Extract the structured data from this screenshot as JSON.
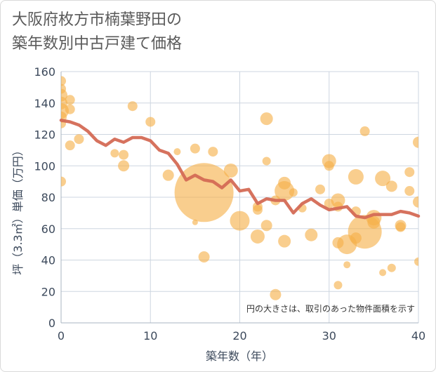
{
  "title_lines": [
    "大阪府枚方市楠葉野田の",
    "築年数別中古戸建て価格"
  ],
  "chart_data": {
    "type": "scatter",
    "title": "大阪府枚方市楠葉野田の築年数別中古戸建て価格",
    "xlabel": "築年数（年）",
    "ylabel": "坪（3.3㎡）単価（万円）",
    "xlim": [
      0,
      40
    ],
    "ylim": [
      0,
      160
    ],
    "xticks": [
      0,
      10,
      20,
      30,
      40
    ],
    "yticks": [
      0,
      20,
      40,
      60,
      80,
      100,
      120,
      140,
      160
    ],
    "grid": true,
    "note": "円の大きさは、取引のあった物件面積を示す",
    "colors": {
      "bubble": "#f5b048",
      "line": "#d46a55",
      "grid": "#cdd6e0"
    },
    "bubbles": [
      {
        "x": 0,
        "y": 154,
        "s": 7
      },
      {
        "x": 0,
        "y": 149,
        "s": 7
      },
      {
        "x": 0,
        "y": 145,
        "s": 9
      },
      {
        "x": 0,
        "y": 140,
        "s": 9
      },
      {
        "x": 0,
        "y": 135,
        "s": 11
      },
      {
        "x": 0,
        "y": 131,
        "s": 8
      },
      {
        "x": 0,
        "y": 127,
        "s": 7
      },
      {
        "x": 0,
        "y": 90,
        "s": 7
      },
      {
        "x": 1,
        "y": 142,
        "s": 7
      },
      {
        "x": 1,
        "y": 136,
        "s": 7
      },
      {
        "x": 1,
        "y": 113,
        "s": 7
      },
      {
        "x": 2,
        "y": 117,
        "s": 7
      },
      {
        "x": 6,
        "y": 108,
        "s": 6
      },
      {
        "x": 7,
        "y": 107,
        "s": 7
      },
      {
        "x": 7,
        "y": 100,
        "s": 8
      },
      {
        "x": 8,
        "y": 138,
        "s": 7
      },
      {
        "x": 10,
        "y": 128,
        "s": 7
      },
      {
        "x": 12,
        "y": 94,
        "s": 8
      },
      {
        "x": 13,
        "y": 109,
        "s": 5
      },
      {
        "x": 15,
        "y": 111,
        "s": 7
      },
      {
        "x": 15,
        "y": 64,
        "s": 4
      },
      {
        "x": 16,
        "y": 83,
        "s": 42
      },
      {
        "x": 16,
        "y": 42,
        "s": 8
      },
      {
        "x": 17,
        "y": 109,
        "s": 7
      },
      {
        "x": 19,
        "y": 97,
        "s": 10
      },
      {
        "x": 20,
        "y": 65,
        "s": 14
      },
      {
        "x": 22,
        "y": 55,
        "s": 10
      },
      {
        "x": 22,
        "y": 74,
        "s": 7
      },
      {
        "x": 22,
        "y": 72,
        "s": 7
      },
      {
        "x": 23,
        "y": 130,
        "s": 9
      },
      {
        "x": 23,
        "y": 103,
        "s": 6
      },
      {
        "x": 23,
        "y": 62,
        "s": 8
      },
      {
        "x": 24,
        "y": 18,
        "s": 8
      },
      {
        "x": 24,
        "y": 78,
        "s": 7
      },
      {
        "x": 25,
        "y": 84,
        "s": 14
      },
      {
        "x": 25,
        "y": 89,
        "s": 9
      },
      {
        "x": 25,
        "y": 52,
        "s": 9
      },
      {
        "x": 26,
        "y": 83,
        "s": 6
      },
      {
        "x": 27,
        "y": 73,
        "s": 6
      },
      {
        "x": 28,
        "y": 56,
        "s": 9
      },
      {
        "x": 29,
        "y": 85,
        "s": 7
      },
      {
        "x": 30,
        "y": 103,
        "s": 10
      },
      {
        "x": 30,
        "y": 100,
        "s": 7
      },
      {
        "x": 30,
        "y": 76,
        "s": 7
      },
      {
        "x": 31,
        "y": 78,
        "s": 10
      },
      {
        "x": 31,
        "y": 74,
        "s": 7
      },
      {
        "x": 31,
        "y": 51,
        "s": 8
      },
      {
        "x": 31,
        "y": 24,
        "s": 6
      },
      {
        "x": 32,
        "y": 50,
        "s": 14
      },
      {
        "x": 32,
        "y": 37,
        "s": 5
      },
      {
        "x": 33,
        "y": 93,
        "s": 11
      },
      {
        "x": 33,
        "y": 71,
        "s": 7
      },
      {
        "x": 33,
        "y": 54,
        "s": 8
      },
      {
        "x": 34,
        "y": 122,
        "s": 7
      },
      {
        "x": 34,
        "y": 58,
        "s": 24
      },
      {
        "x": 35,
        "y": 67,
        "s": 11
      },
      {
        "x": 35,
        "y": 64,
        "s": 9
      },
      {
        "x": 36,
        "y": 92,
        "s": 11
      },
      {
        "x": 36,
        "y": 32,
        "s": 5
      },
      {
        "x": 37,
        "y": 87,
        "s": 8
      },
      {
        "x": 37,
        "y": 35,
        "s": 6
      },
      {
        "x": 38,
        "y": 62,
        "s": 8
      },
      {
        "x": 38,
        "y": 61,
        "s": 7
      },
      {
        "x": 39,
        "y": 96,
        "s": 7
      },
      {
        "x": 39,
        "y": 84,
        "s": 7
      },
      {
        "x": 40,
        "y": 115,
        "s": 8
      },
      {
        "x": 40,
        "y": 77,
        "s": 8
      },
      {
        "x": 40,
        "y": 39,
        "s": 6
      }
    ],
    "line": {
      "x": [
        0,
        1,
        2,
        3,
        4,
        5,
        6,
        7,
        8,
        9,
        10,
        11,
        12,
        13,
        14,
        15,
        16,
        17,
        18,
        19,
        20,
        21,
        22,
        23,
        24,
        25,
        26,
        27,
        28,
        29,
        30,
        31,
        32,
        33,
        34,
        35,
        36,
        37,
        38,
        39,
        40
      ],
      "y": [
        129,
        128,
        126,
        122,
        116,
        113,
        117,
        115,
        118,
        118,
        116,
        110,
        108,
        101,
        91,
        94,
        91,
        90,
        86,
        91,
        84,
        85,
        76,
        79,
        78,
        78,
        70,
        76,
        79,
        75,
        72,
        73,
        74,
        68,
        67,
        69,
        69,
        69,
        71,
        70,
        68
      ]
    }
  }
}
